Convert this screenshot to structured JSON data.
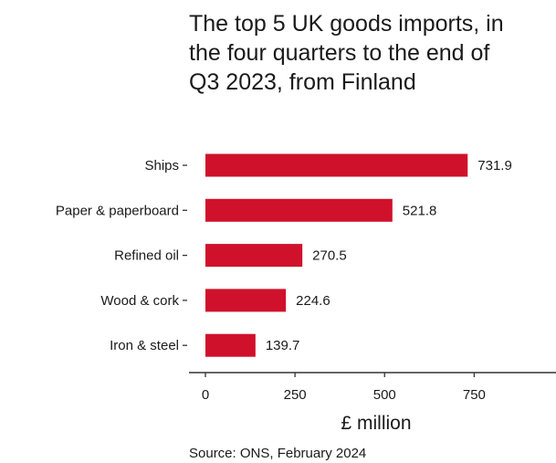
{
  "chart_data": {
    "type": "bar",
    "orientation": "horizontal",
    "title": "The top 5 UK goods imports, in the four quarters to the end of Q3 2023, from Finland",
    "categories": [
      "Ships",
      "Paper & paperboard",
      "Refined oil",
      "Wood & cork",
      "Iron & steel"
    ],
    "values": [
      731.9,
      521.8,
      270.5,
      224.6,
      139.7
    ],
    "value_labels": [
      "731.9",
      "521.8",
      "270.5",
      "224.6",
      "139.7"
    ],
    "xlabel": "£ million",
    "ylabel": "",
    "xlim": [
      0,
      1000
    ],
    "x_ticks": [
      0,
      250,
      500,
      750
    ],
    "x_tick_labels": [
      "0",
      "250",
      "500",
      "750"
    ],
    "bar_color": "#d0112b",
    "grid": false,
    "source": "Source: ONS, February 2024"
  }
}
